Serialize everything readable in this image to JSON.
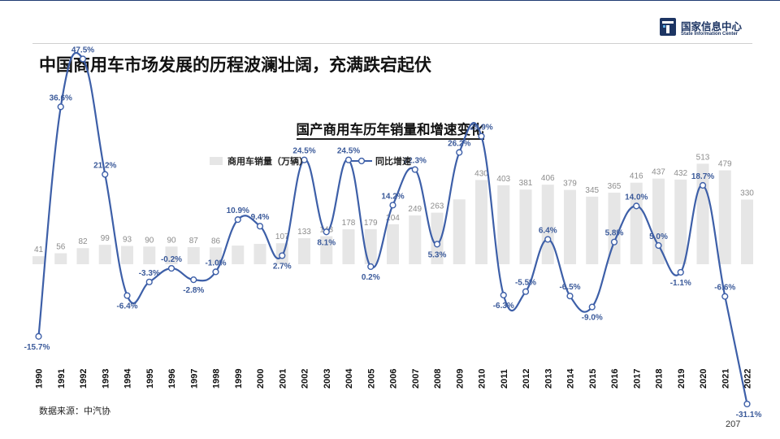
{
  "header": {
    "title": "中国商用车市场发展的历程波澜壮阔，充满跌宕起伏",
    "logo_cn": "国家信息中心",
    "logo_en": "State Information Center"
  },
  "footer": {
    "source": "数据来源：中汽协",
    "page_number": "207"
  },
  "colors": {
    "bar": "#e6e6e6",
    "line": "#3d5fa8",
    "label_blue": "#3b5a9a",
    "label_gray": "#8c8c8c",
    "brand": "#1d3563"
  },
  "chart_data": {
    "type": "bar+line",
    "title": "国产商用车历年销量和增速变化",
    "categories": [
      "1990",
      "1991",
      "1992",
      "1993",
      "1994",
      "1995",
      "1996",
      "1997",
      "1998",
      "1999",
      "2000",
      "2001",
      "2002",
      "2003",
      "2004",
      "2005",
      "2006",
      "2007",
      "2008",
      "2009",
      "2010",
      "2011",
      "2012",
      "2013",
      "2014",
      "2015",
      "2016",
      "2017",
      "2018",
      "2019",
      "2020",
      "2021",
      "2022"
    ],
    "series": [
      {
        "name": "商用车销量（万辆）",
        "kind": "bar",
        "values": [
          41,
          56,
          82,
          99,
          93,
          90,
          90,
          87,
          86,
          95,
          104,
          107,
          133,
          143,
          178,
          179,
          204,
          249,
          263,
          331,
          430,
          403,
          381,
          406,
          379,
          345,
          365,
          416,
          437,
          432,
          513,
          479,
          330
        ],
        "labels": [
          "41",
          "56",
          "82",
          "99",
          "93",
          "90",
          "90",
          "87",
          "86",
          "",
          "",
          "107",
          "133",
          "143",
          "178",
          "179",
          "204",
          "249",
          "263",
          "",
          "430",
          "403",
          "381",
          "406",
          "379",
          "345",
          "365",
          "416",
          "437",
          "432",
          "513",
          "479",
          "330"
        ]
      },
      {
        "name": "同比增速",
        "kind": "line",
        "values": [
          -15.7,
          36.6,
          47.5,
          21.2,
          -6.4,
          -3.3,
          -0.2,
          -2.8,
          -1.0,
          10.9,
          9.4,
          2.7,
          24.5,
          8.1,
          24.5,
          0.2,
          14.2,
          22.3,
          5.3,
          26.2,
          29.9,
          -6.3,
          -5.5,
          6.4,
          -6.5,
          -9.0,
          5.8,
          14.0,
          5.0,
          -1.1,
          18.7,
          -6.6,
          -31.1
        ],
        "labels": [
          "-15.7%",
          "36.6%",
          "47.5%",
          "21.2%",
          "-6.4%",
          "-3.3%",
          "-0.2%",
          "-2.8%",
          "-1.0%",
          "10.9%",
          "9.4%",
          "2.7%",
          "24.5%",
          "8.1%",
          "24.5%",
          "0.2%",
          "14.2%",
          "22.3%",
          "5.3%",
          "26.2%",
          "29.9%",
          "-6.3%",
          "-5.5%",
          "6.4%",
          "-6.5%",
          "-9.0%",
          "5.8%",
          "14.0%",
          "5.0%",
          "-1.1%",
          "18.7%",
          "-6.6%",
          "-31.1%"
        ]
      }
    ],
    "legend_position": "top-center",
    "grid": false
  }
}
